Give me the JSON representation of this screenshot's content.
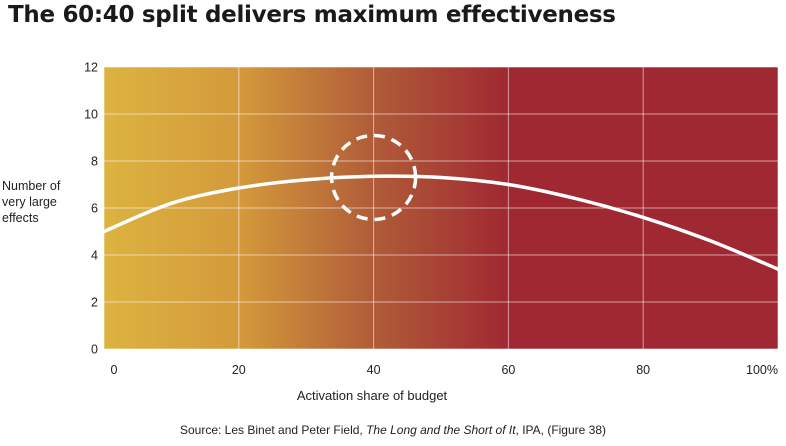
{
  "title": "The 60:40 split delivers maximum effectiveness",
  "source": {
    "prefix": "Source: Les Binet and Peter Field, ",
    "work": "The Long and the Short of It",
    "suffix": ", IPA, (Figure 38)"
  },
  "chart_data": {
    "type": "line",
    "title": "The 60:40 split delivers maximum effectiveness",
    "xlabel": "Activation share of budget",
    "ylabel_lines": [
      "Number of",
      "very large",
      "effects"
    ],
    "xlim": [
      0,
      100
    ],
    "ylim": [
      0,
      12
    ],
    "x_ticks": [
      0,
      20,
      40,
      60,
      80,
      100
    ],
    "x_tick_labels": [
      "0",
      "20",
      "40",
      "60",
      "80",
      "100%"
    ],
    "y_ticks": [
      0,
      2,
      4,
      6,
      8,
      10,
      12
    ],
    "y_tick_labels": [
      "0",
      "2",
      "4",
      "6",
      "8",
      "10",
      "12"
    ],
    "grid": true,
    "background_gradient": {
      "direction": "horizontal",
      "stops": [
        {
          "x": 0,
          "color": "#dcb340"
        },
        {
          "x": 20,
          "color": "#d49a3b"
        },
        {
          "x": 40,
          "color": "#b05c38"
        },
        {
          "x": 60,
          "color": "#a02832"
        },
        {
          "x": 100,
          "color": "#a02832"
        }
      ]
    },
    "series": [
      {
        "color": "#ffffff",
        "x": [
          0,
          10,
          20,
          30,
          40,
          50,
          60,
          70,
          80,
          90,
          100
        ],
        "y": [
          5.0,
          6.2,
          6.85,
          7.2,
          7.35,
          7.3,
          7.0,
          6.4,
          5.6,
          4.6,
          3.4
        ]
      }
    ],
    "annotations": [
      {
        "type": "dashed-circle",
        "x": 40,
        "y": 7.3,
        "color": "#ffffff"
      }
    ]
  }
}
